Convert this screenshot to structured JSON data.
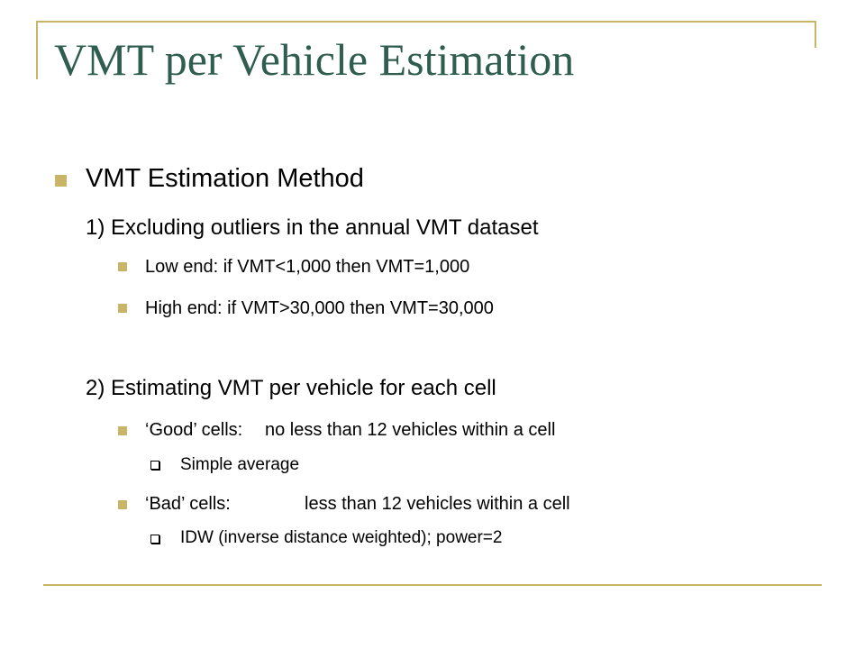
{
  "slide": {
    "title": "VMT per Vehicle Estimation",
    "heading": "VMT Estimation Method",
    "step1": "1) Excluding outliers in the annual VMT dataset",
    "step1_items": [
      "Low end: if VMT<1,000 then VMT=1,000",
      "High end: if VMT>30,000 then VMT=30,000"
    ],
    "step2": "2) Estimating VMT per vehicle for each cell",
    "good_label": "‘Good’ cells:",
    "good_text": "no less than 12 vehicles within a cell",
    "good_method": "Simple average",
    "bad_label": "‘Bad’ cells:",
    "bad_text": "less than 12 vehicles within a cell",
    "bad_method": "IDW (inverse distance weighted); power=2"
  },
  "colors": {
    "accent": "#c9b468",
    "title": "#2f5d50",
    "text": "#000000"
  },
  "icons": [
    "square-bullet-icon",
    "hollow-box-bullet-icon"
  ]
}
